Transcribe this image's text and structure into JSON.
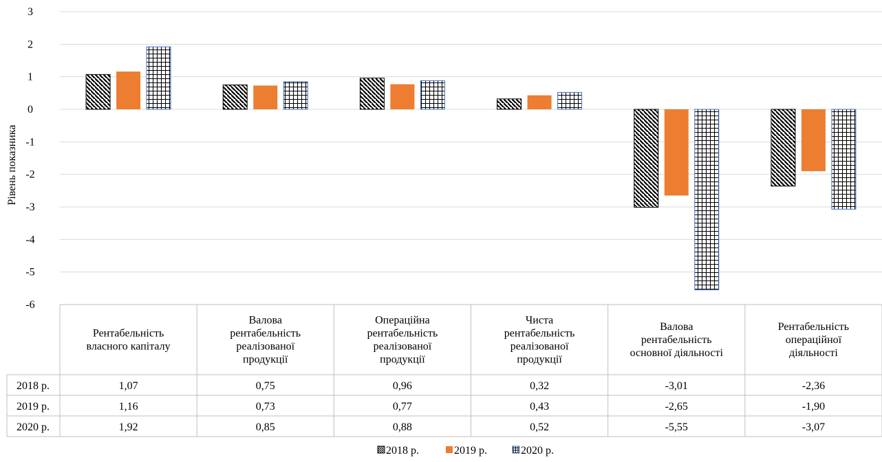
{
  "chart_data": {
    "type": "bar",
    "ylabel": "Рівень показника",
    "ylim": [
      -6,
      3
    ],
    "yticks": [
      3,
      2,
      1,
      0,
      -1,
      -2,
      -3,
      -4,
      -5,
      -6
    ],
    "grid": true,
    "legend_position": "bottom",
    "categories": [
      [
        "Рентабельність",
        "власного капіталу"
      ],
      [
        "Валова",
        "рентабельність",
        "реалізованої",
        "продукції"
      ],
      [
        "Операційна",
        "рентабельність",
        "реалізованої",
        "продукції"
      ],
      [
        "Чиста",
        "рентабельність",
        "реалізованої",
        "продукції"
      ],
      [
        "Валова",
        "рентабельність",
        "основної діяльності"
      ],
      [
        "Рентабельність",
        "операційної",
        "діяльності"
      ]
    ],
    "series": [
      {
        "name": "2018 р.",
        "pattern": "diagonal-hatch",
        "color": "#000000",
        "values": [
          1.07,
          0.75,
          0.96,
          0.32,
          -3.01,
          -2.36
        ],
        "labels": [
          "1,07",
          "0,75",
          "0,96",
          "0,32",
          "-3,01",
          "-2,36"
        ]
      },
      {
        "name": "2019 р.",
        "pattern": "solid",
        "color": "#ED7D31",
        "values": [
          1.16,
          0.73,
          0.77,
          0.43,
          -2.65,
          -1.9
        ],
        "labels": [
          "1,16",
          "0,73",
          "0,77",
          "0,43",
          "-2,65",
          "-1,90"
        ]
      },
      {
        "name": "2020 р.",
        "pattern": "grid-hatch",
        "color": "#000000",
        "values": [
          1.92,
          0.85,
          0.88,
          0.52,
          -5.55,
          -3.07
        ],
        "labels": [
          "1,92",
          "0,85",
          "0,88",
          "0,52",
          "-5,55",
          "-3,07"
        ]
      }
    ],
    "colors": {
      "grid": "#D9D9D9",
      "border_2020": "#4472C4",
      "orange": "#ED7D31"
    }
  }
}
